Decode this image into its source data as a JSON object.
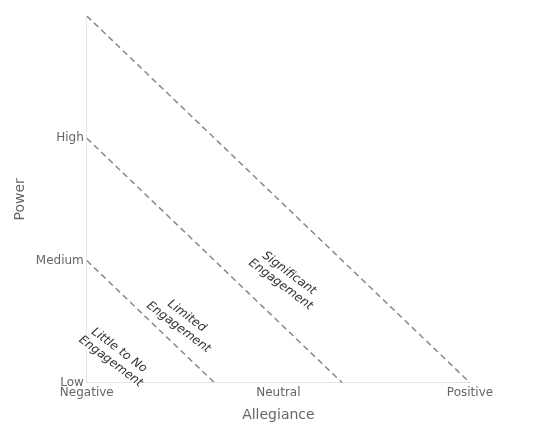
{
  "chart_data": {
    "type": "line",
    "xlabel": "Allegiance",
    "ylabel": "Power",
    "xlim": [
      0,
      3
    ],
    "ylim": [
      0,
      3
    ],
    "xticks": [
      {
        "value": 0,
        "label": "Negative"
      },
      {
        "value": 1.5,
        "label": "Neutral"
      },
      {
        "value": 3,
        "label": "Positive"
      }
    ],
    "yticks": [
      {
        "value": 0,
        "label": "Low"
      },
      {
        "value": 1,
        "label": "Medium"
      },
      {
        "value": 2,
        "label": "High"
      }
    ],
    "series": [
      {
        "x": [
          0,
          3
        ],
        "values": [
          3,
          0
        ],
        "color": "#888888",
        "line_style": "dashed"
      },
      {
        "x": [
          0,
          2
        ],
        "values": [
          2,
          0
        ],
        "color": "#888888",
        "line_style": "dashed"
      },
      {
        "x": [
          0,
          1
        ],
        "values": [
          1,
          0
        ],
        "color": "#888888",
        "line_style": "dashed"
      }
    ],
    "annotations": [
      {
        "text": "Significant\nEngagement",
        "x": 1.55,
        "y": 0.85
      },
      {
        "text": "Limited\nEngagement",
        "x": 0.75,
        "y": 0.5
      },
      {
        "text": "Little to No\nEngagement",
        "x": 0.22,
        "y": 0.22
      }
    ],
    "grid": false
  }
}
